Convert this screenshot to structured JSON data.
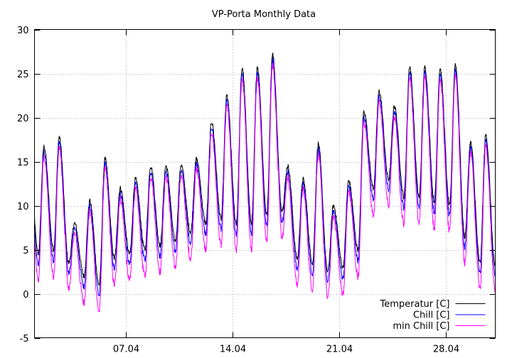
{
  "chart_data": {
    "type": "line",
    "title": "VP-Porta Monthly Data",
    "xlabel": "",
    "ylabel": "",
    "ylim": [
      -5,
      30
    ],
    "yticks": [
      -5,
      0,
      5,
      10,
      15,
      20,
      25,
      30
    ],
    "xlim_days": [
      1.0,
      31.25
    ],
    "xticks": [
      {
        "day": 7,
        "label": "07.04"
      },
      {
        "day": 14,
        "label": "14.04"
      },
      {
        "day": 21,
        "label": "21.04"
      },
      {
        "day": 28,
        "label": "28.04"
      }
    ],
    "grid": true,
    "legend_position": "bottom-right",
    "daily_cycles": [
      {
        "day": 1,
        "min": 4.5,
        "max": 16.7
      },
      {
        "day": 2,
        "min": 5.0,
        "max": 17.8
      },
      {
        "day": 3,
        "min": 3.5,
        "max": 8.0
      },
      {
        "day": 4,
        "min": 2.0,
        "max": 10.5
      },
      {
        "day": 5,
        "min": 1.0,
        "max": 15.3
      },
      {
        "day": 6,
        "min": 4.0,
        "max": 12.0
      },
      {
        "day": 7,
        "min": 4.5,
        "max": 13.0
      },
      {
        "day": 8,
        "min": 5.0,
        "max": 14.5
      },
      {
        "day": 9,
        "min": 5.5,
        "max": 14.5
      },
      {
        "day": 10,
        "min": 6.0,
        "max": 14.6
      },
      {
        "day": 11,
        "min": 7.0,
        "max": 15.3
      },
      {
        "day": 12,
        "min": 8.0,
        "max": 19.5
      },
      {
        "day": 13,
        "min": 8.5,
        "max": 22.5
      },
      {
        "day": 14,
        "min": 8.0,
        "max": 25.6
      },
      {
        "day": 15,
        "min": 8.0,
        "max": 25.8
      },
      {
        "day": 16,
        "min": 9.0,
        "max": 27.2
      },
      {
        "day": 17,
        "min": 9.5,
        "max": 14.5
      },
      {
        "day": 18,
        "min": 4.0,
        "max": 13.0
      },
      {
        "day": 19,
        "min": 3.5,
        "max": 17.0
      },
      {
        "day": 20,
        "min": 2.5,
        "max": 10.0
      },
      {
        "day": 21,
        "min": 3.0,
        "max": 12.8
      },
      {
        "day": 22,
        "min": 5.0,
        "max": 20.7
      },
      {
        "day": 23,
        "min": 12.0,
        "max": 23.0
      },
      {
        "day": 24,
        "min": 13.0,
        "max": 21.3
      },
      {
        "day": 25,
        "min": 11.0,
        "max": 25.8
      },
      {
        "day": 26,
        "min": 11.0,
        "max": 25.7
      },
      {
        "day": 27,
        "min": 10.5,
        "max": 25.6
      },
      {
        "day": 28,
        "min": 10.0,
        "max": 26.1
      },
      {
        "day": 29,
        "min": 6.5,
        "max": 17.2
      },
      {
        "day": 30,
        "min": 3.5,
        "max": 18.0
      },
      {
        "day": 31,
        "min": 3.0,
        "max": 17.5
      }
    ],
    "series": [
      {
        "name": "Temperatur [C]",
        "color": "#000000",
        "offset_low": 0.0,
        "offset_high": 0.0
      },
      {
        "name": "Chill [C]",
        "color": "#0000ff",
        "offset_low": 1.2,
        "offset_high": 0.6
      },
      {
        "name": "min Chill [C]",
        "color": "#ff00ff",
        "offset_low": 3.0,
        "offset_high": 1.2
      }
    ]
  }
}
